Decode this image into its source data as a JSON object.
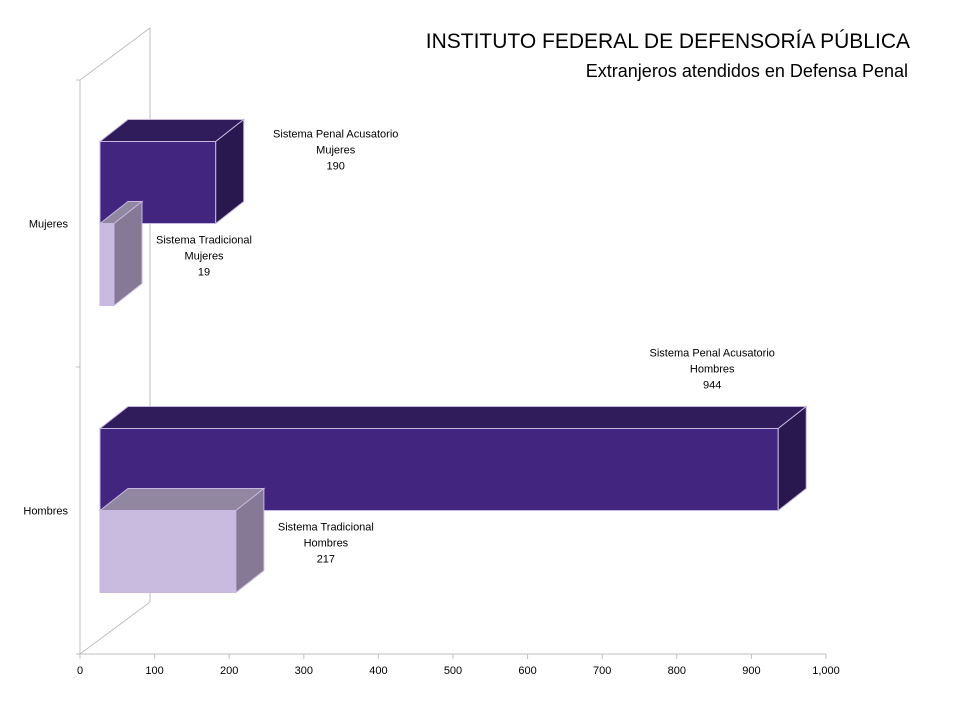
{
  "chart_data": {
    "type": "bar",
    "orientation": "horizontal",
    "style": "3d",
    "title": "INSTITUTO FEDERAL DE DEFENSORÍA PÚBLICA",
    "subtitle": "Extranjeros atendidos en Defensa Penal",
    "xlabel": "",
    "ylabel": "",
    "xlim": [
      0,
      1000
    ],
    "x_ticks": [
      "0",
      "100",
      "200",
      "300",
      "400",
      "500",
      "600",
      "700",
      "800",
      "900",
      "1,000"
    ],
    "categories": [
      "Mujeres",
      "Hombres"
    ],
    "series": [
      {
        "name": "Sistema Penal Acusatorio",
        "color": "#42257f",
        "values": [
          190,
          944
        ],
        "labels": [
          [
            "Sistema Penal Acusatorio",
            "Mujeres",
            "190"
          ],
          [
            "Sistema Penal Acusatorio",
            "Hombres",
            "944"
          ]
        ]
      },
      {
        "name": "Sistema Tradicional",
        "color": "#c9bbdf",
        "values": [
          19,
          217
        ],
        "labels": [
          [
            "Sistema Tradicional",
            "Mujeres",
            "19"
          ],
          [
            "Sistema Tradicional",
            "Hombres",
            "217"
          ]
        ]
      }
    ],
    "grid": false,
    "legend": "none"
  }
}
